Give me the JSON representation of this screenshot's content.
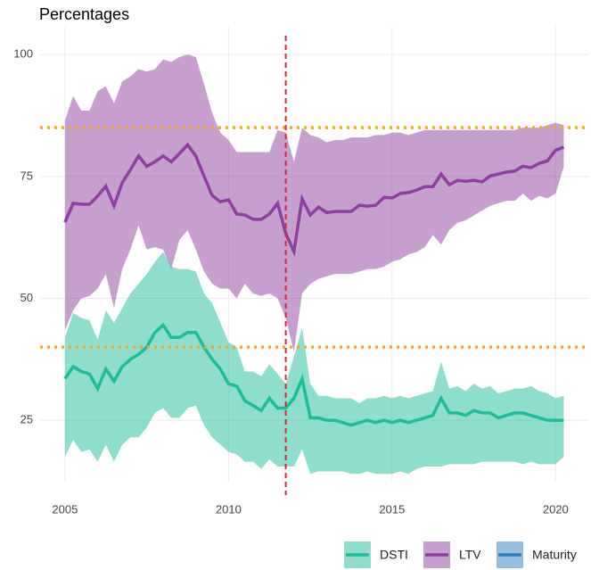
{
  "chart_data": {
    "type": "ribbon-line",
    "title": "Percentages",
    "x": [
      2005,
      2005.25,
      2005.5,
      2005.75,
      2006,
      2006.25,
      2006.5,
      2006.75,
      2007,
      2007.25,
      2007.5,
      2007.75,
      2008,
      2008.25,
      2008.5,
      2008.75,
      2009,
      2009.25,
      2009.5,
      2009.75,
      2010,
      2010.25,
      2010.5,
      2010.75,
      2011,
      2011.25,
      2011.5,
      2011.75,
      2012,
      2012.25,
      2012.5,
      2012.75,
      2013,
      2013.25,
      2013.5,
      2013.75,
      2014,
      2014.25,
      2014.5,
      2014.75,
      2015,
      2015.25,
      2015.5,
      2015.75,
      2016,
      2016.25,
      2016.5,
      2016.75,
      2017,
      2017.25,
      2017.5,
      2017.75,
      2018,
      2018.25,
      2018.5,
      2018.75,
      2019,
      2019.25,
      2019.5,
      2019.75,
      2020,
      2020.25
    ],
    "series": [
      {
        "name": "DSTI",
        "color": "#1dbc9c",
        "values": [
          33.5,
          36,
          35,
          34.5,
          31.5,
          35.5,
          33,
          36,
          37.5,
          38.5,
          40,
          43,
          44.5,
          42,
          42,
          43,
          43,
          40,
          37.5,
          35.5,
          32.5,
          32,
          29,
          28,
          27,
          29.5,
          27.5,
          27.5,
          29.5,
          33.5,
          25.5,
          25.5,
          25,
          25,
          24.5,
          24,
          24.5,
          25,
          24.5,
          25,
          24.5,
          25,
          24.5,
          25,
          25.5,
          26,
          29.5,
          26.5,
          26.5,
          26,
          27,
          26.5,
          26.5,
          25.5,
          26,
          26.5,
          26.5,
          26,
          25.5,
          25,
          25,
          25
        ],
        "upper": [
          42,
          47,
          46,
          45.5,
          41.5,
          47.5,
          45,
          48,
          51,
          53,
          55,
          57.5,
          59.5,
          56.5,
          56,
          56,
          55.5,
          51,
          49,
          45,
          41,
          40,
          35,
          35,
          34,
          36.5,
          34.5,
          32.5,
          38,
          44,
          32.5,
          30,
          30,
          29.5,
          29.5,
          29.5,
          28.5,
          29.5,
          29.5,
          30,
          29.5,
          30,
          29.5,
          30,
          30.5,
          31,
          37,
          31.5,
          32,
          31,
          32.5,
          31.5,
          32,
          30.5,
          31,
          31.5,
          31.5,
          32,
          31,
          30.5,
          29.5,
          30
        ],
        "lower": [
          17.5,
          21,
          18.5,
          19,
          16.5,
          20,
          16.5,
          20,
          21.5,
          21.5,
          23.5,
          26.5,
          27.5,
          25.5,
          25.5,
          27.5,
          28,
          24,
          21.5,
          20,
          18.5,
          18,
          16.5,
          16.5,
          15,
          17,
          15.5,
          15.5,
          15.5,
          19,
          14,
          14.5,
          14.5,
          14.5,
          14.5,
          14,
          14,
          14.5,
          14,
          14,
          14,
          14.5,
          14,
          15,
          15.5,
          15.5,
          15.5,
          16,
          16,
          16,
          16,
          16.5,
          16.5,
          16.5,
          16.5,
          16.5,
          16,
          16.5,
          16,
          16,
          16,
          17.5
        ]
      },
      {
        "name": "LTV",
        "color": "#8e3fa0",
        "values": [
          65.6,
          69.5,
          69.3,
          69.3,
          71,
          73,
          69,
          73.7,
          76.4,
          79.2,
          77.1,
          78,
          79.2,
          78,
          79.7,
          81.5,
          79.2,
          75.1,
          71.1,
          69.8,
          70.2,
          67.3,
          67.1,
          66.2,
          66.2,
          67.3,
          69.5,
          63.3,
          59.6,
          70.4,
          67.1,
          68.7,
          67.6,
          67.8,
          67.8,
          67.8,
          69.1,
          68.9,
          69.1,
          70.7,
          70.6,
          71.5,
          71.7,
          72.2,
          72.9,
          72.9,
          75.5,
          73.3,
          74.2,
          74,
          74.2,
          73.9,
          75.1,
          75.5,
          75.9,
          76.1,
          77.1,
          76.8,
          77.7,
          78.2,
          80.4,
          81
        ],
        "upper": [
          86.5,
          91.5,
          88.5,
          88.5,
          92.5,
          93.5,
          90,
          94.5,
          95.5,
          97,
          96.5,
          97,
          99,
          98.5,
          99.5,
          100,
          99.5,
          94,
          88,
          84,
          82.5,
          80,
          80,
          80,
          80,
          80,
          84.5,
          84,
          78,
          85,
          83.5,
          83,
          82,
          82.5,
          82.5,
          83,
          83,
          83,
          83.5,
          83.5,
          84,
          84,
          83.5,
          84,
          84.5,
          84.5,
          84.5,
          84.5,
          84.5,
          84.5,
          84.5,
          84.5,
          84.5,
          84.5,
          84.5,
          84.5,
          85,
          85,
          85,
          85.5,
          86,
          85.5
        ],
        "lower": [
          43.5,
          47.5,
          50,
          50.5,
          52,
          55,
          48,
          56,
          60,
          65,
          60,
          60.5,
          60,
          56,
          62,
          64,
          60,
          55.5,
          53,
          52,
          52,
          50,
          53,
          51,
          50.5,
          51,
          50,
          46,
          39,
          51,
          53,
          54,
          54.5,
          55,
          55,
          55,
          55.5,
          56,
          56,
          56.5,
          57.5,
          58,
          59,
          59.5,
          60.5,
          63,
          61,
          64,
          65.5,
          66,
          67,
          68,
          69,
          69.5,
          70,
          70,
          71.5,
          70,
          71,
          70.5,
          71.5,
          77
        ]
      },
      {
        "name": "Maturity",
        "color": "#2e7ebf"
      }
    ],
    "xlim": [
      2004.24,
      2021.0
    ],
    "ylim": [
      12.4,
      105.7
    ],
    "xticks": [
      2005,
      2010,
      2015,
      2020
    ],
    "yticks": [
      25,
      50,
      75,
      100
    ],
    "hlines": [
      85,
      40
    ],
    "hline_color": "#f5a623",
    "vline": 2011.75,
    "vline_color": "#d62839",
    "grid": true,
    "legend_position": "bottom"
  }
}
